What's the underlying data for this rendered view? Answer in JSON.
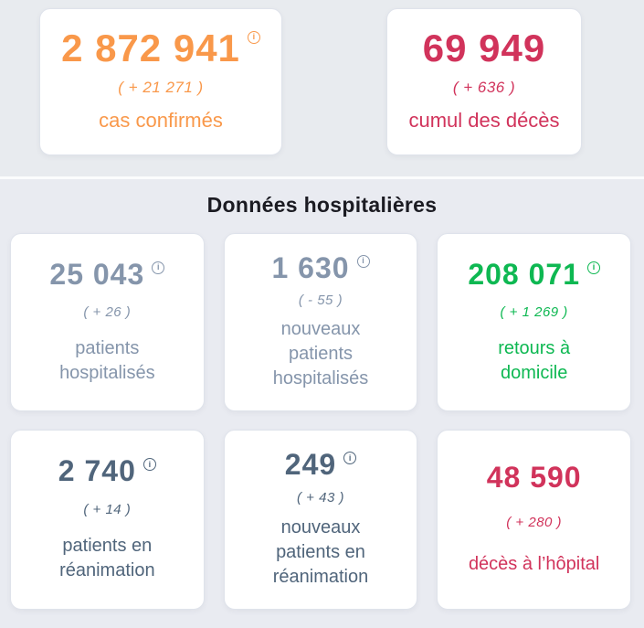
{
  "theme": {
    "background_top": "#e8ebef",
    "background_bottom": "#e9ebf1",
    "card_background": "#ffffff",
    "card_border": "#dfe3eb",
    "title_color": "#1b1b22",
    "orange": "#f9984a",
    "crimson": "#d1335b",
    "light_slate": "#8595ab",
    "dark_slate": "#50657b",
    "green": "#0eb852"
  },
  "icons": {
    "info_glyph": "i"
  },
  "top_cards": [
    {
      "value": "2 872 941",
      "delta": "( + 21 271 )",
      "label": "cas confirmés",
      "color": "#f9984a"
    },
    {
      "value": "69 949",
      "delta": "( + 636 )",
      "label": "cumul des décès",
      "color": "#d1335b"
    }
  ],
  "hospital": {
    "title": "Données hospitalières",
    "cards": [
      {
        "value": "25 043",
        "delta": "( + 26 )",
        "label": "patients\nhospitalisés",
        "color": "#8595ab"
      },
      {
        "value": "1 630",
        "delta": "( - 55 )",
        "label": "nouveaux\npatients\nhospitalisés",
        "color": "#8595ab"
      },
      {
        "value": "208 071",
        "delta": "( + 1 269 )",
        "label": "retours à\ndomicile",
        "color": "#0eb852"
      },
      {
        "value": "2 740",
        "delta": "( + 14 )",
        "label": "patients en\nréanimation",
        "color": "#50657b"
      },
      {
        "value": "249",
        "delta": "( + 43 )",
        "label": "nouveaux\npatients en\nréanimation",
        "color": "#50657b"
      },
      {
        "value": "48 590",
        "delta": "( + 280 )",
        "label": "décès à l’hôpital",
        "color": "#d1335b"
      }
    ]
  }
}
